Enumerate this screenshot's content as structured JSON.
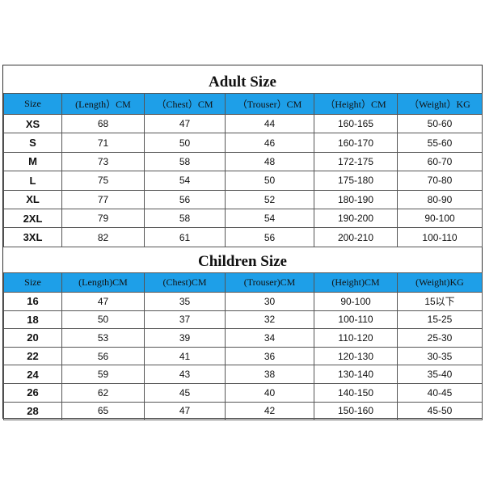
{
  "adult": {
    "title": "Adult Size",
    "header": [
      "Size",
      "(Length）CM",
      "（Chest）CM",
      "（Trouser）CM",
      "（Height）CM",
      "（Weight）KG"
    ],
    "rows": [
      [
        "XS",
        "68",
        "47",
        "44",
        "160-165",
        "50-60"
      ],
      [
        "S",
        "71",
        "50",
        "46",
        "160-170",
        "55-60"
      ],
      [
        "M",
        "73",
        "58",
        "48",
        "172-175",
        "60-70"
      ],
      [
        "L",
        "75",
        "54",
        "50",
        "175-180",
        "70-80"
      ],
      [
        "XL",
        "77",
        "56",
        "52",
        "180-190",
        "80-90"
      ],
      [
        "2XL",
        "79",
        "58",
        "54",
        "190-200",
        "90-100"
      ],
      [
        "3XL",
        "82",
        "61",
        "56",
        "200-210",
        "100-110"
      ]
    ]
  },
  "children": {
    "title": "Children Size",
    "header": [
      "Size",
      "(Length)CM",
      "(Chest)CM",
      "(Trouser)CM",
      "(Height)CM",
      "(Weight)KG"
    ],
    "rows": [
      [
        "16",
        "47",
        "35",
        "30",
        "90-100",
        "15以下"
      ],
      [
        "18",
        "50",
        "37",
        "32",
        "100-110",
        "15-25"
      ],
      [
        "20",
        "53",
        "39",
        "34",
        "110-120",
        "25-30"
      ],
      [
        "22",
        "56",
        "41",
        "36",
        "120-130",
        "30-35"
      ],
      [
        "24",
        "59",
        "43",
        "38",
        "130-140",
        "35-40"
      ],
      [
        "26",
        "62",
        "45",
        "40",
        "140-150",
        "40-45"
      ],
      [
        "28",
        "65",
        "47",
        "42",
        "150-160",
        "45-50"
      ]
    ]
  }
}
